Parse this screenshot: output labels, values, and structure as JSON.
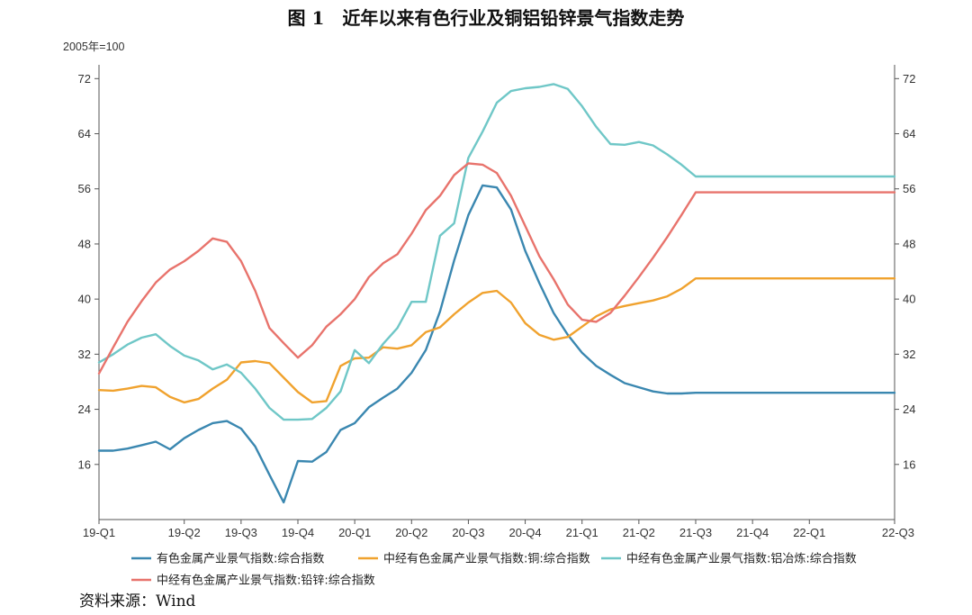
{
  "figure": {
    "title": "图 1　近年以来有色行业及铜铝铅锌景气指数走势",
    "source": "资料来源：Wind"
  },
  "chart_data": {
    "type": "line",
    "title": "图 1　近年以来有色行业及铜铝铅锌景气指数走势",
    "unit_label": "2005年=100",
    "xlabel": "",
    "ylabel": "",
    "x_tick_labels": [
      "19-Q1",
      "19-Q2",
      "19-Q3",
      "19-Q4",
      "20-Q1",
      "20-Q2",
      "20-Q3",
      "20-Q4",
      "21-Q1",
      "21-Q2",
      "21-Q3",
      "21-Q4",
      "22-Q1",
      "22-Q3"
    ],
    "x_tick_positions": [
      0,
      3,
      5,
      7,
      9,
      11,
      13,
      15,
      17,
      19,
      21,
      23,
      25,
      28
    ],
    "x": [
      0,
      0.5,
      1,
      1.5,
      2,
      2.5,
      3,
      3.5,
      4,
      4.5,
      5,
      5.5,
      6,
      6.5,
      7,
      7.5,
      8,
      8.5,
      9,
      9.5,
      10,
      10.5,
      11,
      11.5,
      12,
      12.5,
      13,
      13.5,
      14,
      14.5,
      15,
      15.5,
      16,
      16.5,
      17,
      17.5,
      18,
      18.5,
      19,
      19.5,
      20,
      20.5,
      21,
      21.5,
      22,
      22.5,
      23,
      23.5,
      24,
      24.5,
      25,
      25.5,
      26,
      26.5,
      27,
      27.5,
      28
    ],
    "ylim": [
      8,
      74
    ],
    "y_ticks": [
      16,
      24,
      32,
      40,
      48,
      56,
      64,
      72
    ],
    "right_axis_mirror": true,
    "grid": false,
    "legend_position": "bottom",
    "series": [
      {
        "name": "有色金属产业景气指数:综合指数",
        "color": "#3a87b0",
        "values": [
          18.0,
          18.0,
          18.3,
          18.8,
          19.3,
          18.2,
          19.8,
          21.0,
          22.0,
          22.3,
          21.2,
          18.6,
          14.5,
          10.5,
          16.5,
          16.4,
          17.8,
          21.0,
          22.0,
          24.3,
          25.7,
          27.0,
          29.3,
          32.6,
          38.2,
          45.6,
          52.2,
          56.5,
          56.2,
          53.0,
          47.0,
          42.3,
          38.0,
          34.8,
          32.2,
          30.3,
          29.0,
          27.8,
          27.2,
          26.6,
          26.3,
          26.3,
          26.4,
          26.4,
          26.4,
          26.4,
          26.4,
          26.4,
          26.4,
          26.4,
          26.4,
          26.4,
          26.4,
          26.4,
          26.4,
          26.4,
          26.4
        ]
      },
      {
        "name": "中经有色金属产业景气指数:铜:综合指数",
        "color": "#f0a22e",
        "values": [
          26.8,
          26.7,
          27.0,
          27.4,
          27.2,
          25.8,
          25.0,
          25.5,
          27.0,
          28.3,
          30.8,
          31.0,
          30.7,
          28.6,
          26.5,
          25.0,
          25.2,
          30.3,
          31.4,
          31.5,
          33.0,
          32.8,
          33.3,
          35.2,
          35.9,
          37.8,
          39.5,
          40.9,
          41.2,
          39.5,
          36.5,
          34.8,
          34.1,
          34.5,
          36.0,
          37.5,
          38.5,
          39.0,
          39.4,
          39.8,
          40.4,
          41.5,
          43.0,
          43.0,
          43.0,
          43.0,
          43.0,
          43.0,
          43.0,
          43.0,
          43.0,
          43.0,
          43.0,
          43.0,
          43.0,
          43.0,
          43.0
        ]
      },
      {
        "name": "中经有色金属产业景气指数:铝冶炼:综合指数",
        "color": "#6fc7c7",
        "values": [
          30.8,
          32.0,
          33.4,
          34.4,
          34.9,
          33.2,
          31.8,
          31.1,
          29.8,
          30.5,
          29.3,
          27.0,
          24.2,
          22.5,
          22.5,
          22.6,
          24.2,
          26.6,
          32.6,
          30.7,
          33.5,
          35.8,
          39.6,
          39.6,
          49.2,
          51.0,
          60.5,
          64.3,
          68.5,
          70.2,
          70.6,
          70.8,
          71.2,
          70.5,
          68.0,
          65.0,
          62.5,
          62.4,
          62.8,
          62.3,
          61.0,
          59.5,
          57.8,
          57.8,
          57.8,
          57.8,
          57.8,
          57.8,
          57.8,
          57.8,
          57.8,
          57.8,
          57.8,
          57.8,
          57.8,
          57.8,
          57.8
        ]
      },
      {
        "name": "中经有色金属产业景气指数:铅锌:综合指数",
        "color": "#e8736c",
        "values": [
          29.2,
          33.0,
          36.7,
          39.7,
          42.4,
          44.3,
          45.5,
          47.0,
          48.8,
          48.3,
          45.5,
          41.2,
          35.8,
          33.6,
          31.5,
          33.3,
          36.0,
          37.8,
          40.0,
          43.2,
          45.2,
          46.5,
          49.5,
          52.9,
          55.0,
          58.0,
          59.7,
          59.5,
          58.3,
          55.0,
          50.6,
          46.2,
          42.9,
          39.2,
          37.0,
          36.7,
          38.0,
          40.5,
          43.2,
          46.0,
          49.0,
          52.2,
          55.5,
          55.5,
          55.5,
          55.5,
          55.5,
          55.5,
          55.5,
          55.5,
          55.5,
          55.5,
          55.5,
          55.5,
          55.5,
          55.5,
          55.5
        ]
      }
    ]
  }
}
